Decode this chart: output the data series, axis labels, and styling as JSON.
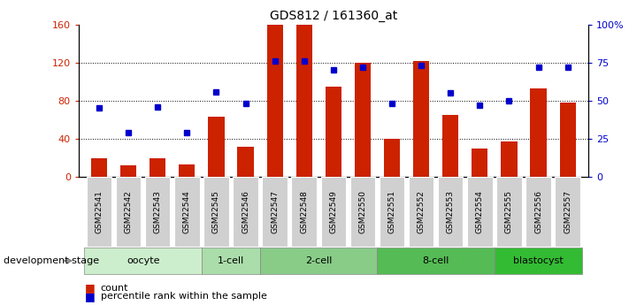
{
  "title": "GDS812 / 161360_at",
  "samples": [
    "GSM22541",
    "GSM22542",
    "GSM22543",
    "GSM22544",
    "GSM22545",
    "GSM22546",
    "GSM22547",
    "GSM22548",
    "GSM22549",
    "GSM22550",
    "GSM22551",
    "GSM22552",
    "GSM22553",
    "GSM22554",
    "GSM22555",
    "GSM22556",
    "GSM22557"
  ],
  "counts": [
    20,
    12,
    20,
    13,
    63,
    32,
    160,
    160,
    95,
    120,
    40,
    122,
    65,
    30,
    37,
    93,
    78
  ],
  "percentile_ranks": [
    45,
    29,
    46,
    29,
    56,
    48,
    76,
    76,
    70,
    72,
    48,
    73,
    55,
    47,
    50,
    72,
    72
  ],
  "groups": [
    {
      "label": "oocyte",
      "start": 0,
      "end": 4,
      "color": "#cceecc"
    },
    {
      "label": "1-cell",
      "start": 4,
      "end": 6,
      "color": "#aaddaa"
    },
    {
      "label": "2-cell",
      "start": 6,
      "end": 10,
      "color": "#88cc88"
    },
    {
      "label": "8-cell",
      "start": 10,
      "end": 14,
      "color": "#55bb55"
    },
    {
      "label": "blastocyst",
      "start": 14,
      "end": 17,
      "color": "#33bb33"
    }
  ],
  "bar_color": "#cc2200",
  "marker_color": "#0000cc",
  "left_ylim": [
    0,
    160
  ],
  "right_ylim": [
    0,
    100
  ],
  "left_yticks": [
    0,
    40,
    80,
    120,
    160
  ],
  "right_yticks": [
    0,
    25,
    50,
    75,
    100
  ],
  "right_yticklabels": [
    "0",
    "25",
    "50",
    "75",
    "100%"
  ],
  "xlabel_stage": "development stage",
  "legend_count": "count",
  "legend_pct": "percentile rank within the sample",
  "bg_color": "#ffffff",
  "plot_bg_color": "#ffffff",
  "grid_color": "#000000",
  "tick_label_color_left": "#cc2200",
  "tick_label_color_right": "#0000cc",
  "bar_width": 0.55,
  "figsize": [
    7.11,
    3.45
  ],
  "dpi": 100
}
